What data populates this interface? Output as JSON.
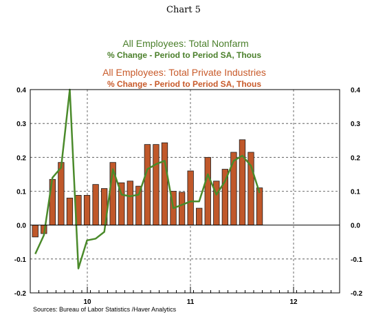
{
  "figure_title": "Chart 5",
  "source_note": "Sources:  Bureau of Labor Statistics /Haver Analytics",
  "colors": {
    "line": "#4a8a2a",
    "bars": "#c0582a",
    "bar_stroke": "#1a1a1a",
    "green_text": "#4a7f2a",
    "orange_text": "#c85a2a"
  },
  "chart_data": {
    "type": "bar",
    "legend": [
      {
        "title": "All Employees: Total Nonfarm",
        "subtitle": "% Change - Period to Period    SA, Thous",
        "color": "#4a7f2a"
      },
      {
        "title": "All Employees: Total Private Industries",
        "subtitle": "% Change - Period to Period    SA, Thous",
        "color": "#c85a2a"
      }
    ],
    "ylim": [
      -0.2,
      0.4
    ],
    "yticks": [
      "0.4",
      "0.3",
      "0.2",
      "0.1",
      "0.0",
      "-0.1",
      "-0.2"
    ],
    "x_year_labels": [
      "10",
      "11",
      "12"
    ],
    "grid": true,
    "series": [
      {
        "name": "All Employees: Total Private Industries",
        "type": "bar",
        "values": [
          -0.035,
          -0.025,
          0.135,
          0.185,
          0.08,
          0.088,
          0.088,
          0.12,
          0.108,
          0.185,
          0.125,
          0.13,
          0.115,
          0.238,
          0.238,
          0.243,
          0.1,
          0.097,
          0.16,
          0.05,
          0.2,
          0.13,
          0.165,
          0.215,
          0.252,
          0.215,
          0.11
        ]
      },
      {
        "name": "All Employees: Total Nonfarm",
        "type": "line",
        "values": [
          -0.085,
          -0.03,
          0.14,
          0.17,
          0.4,
          -0.128,
          -0.045,
          -0.04,
          -0.02,
          0.165,
          0.09,
          0.085,
          0.09,
          0.165,
          0.18,
          0.19,
          0.05,
          0.06,
          0.07,
          0.07,
          0.15,
          0.09,
          0.13,
          0.19,
          0.205,
          0.175,
          0.095
        ]
      }
    ]
  }
}
